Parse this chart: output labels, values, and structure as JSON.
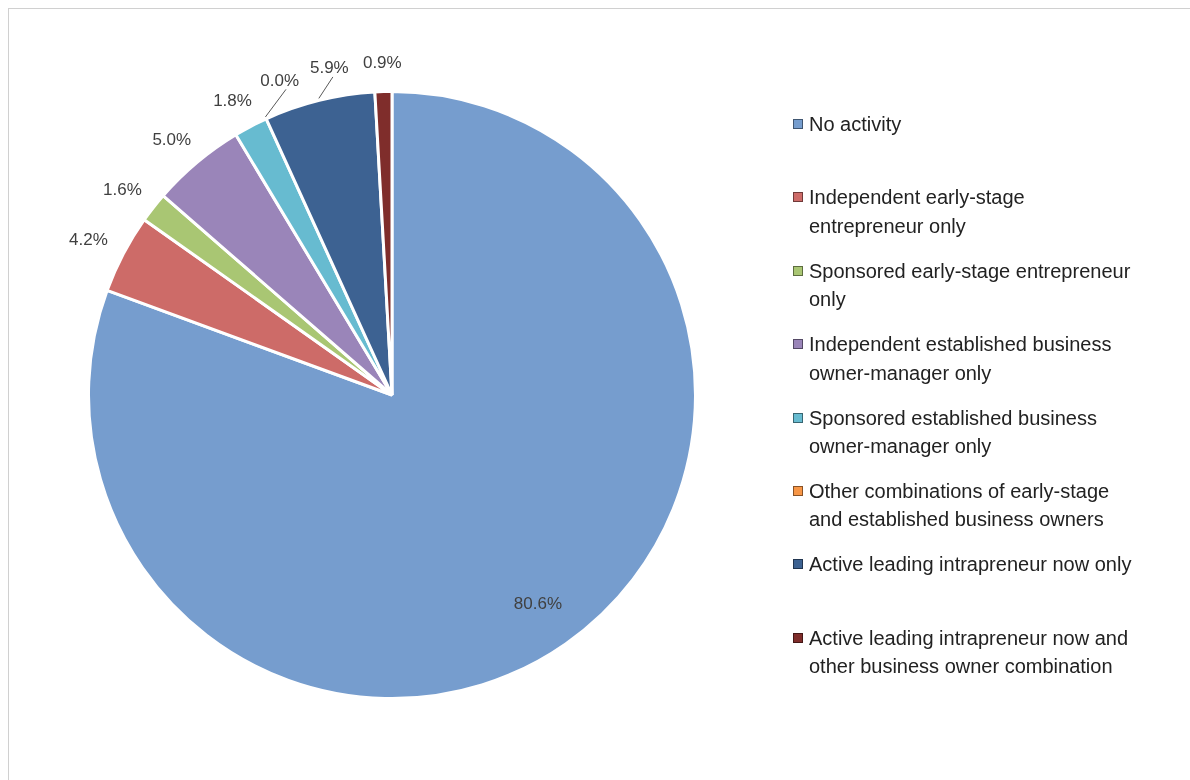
{
  "chart_data": {
    "type": "pie",
    "categories": [
      "No activity",
      "Independent early-stage entrepreneur only",
      "Sponsored early-stage entrepreneur only",
      "Independent established business owner-manager only",
      "Sponsored established business owner-manager only",
      "Other combinations of early-stage and established business owners",
      "Active leading intrapreneur now only",
      "Active leading intrapreneur now and other business owner combination"
    ],
    "values": [
      80.6,
      4.2,
      1.6,
      5.0,
      1.8,
      0.0,
      5.9,
      0.9
    ],
    "value_labels": [
      "80.6%",
      "4.2%",
      "1.6%",
      "5.0%",
      "1.8%",
      "0.0%",
      "5.9%",
      "0.9%"
    ],
    "colors": [
      "#769dce",
      "#cd6b68",
      "#a9c673",
      "#9a85b9",
      "#67bbd0",
      "#f79646",
      "#3d6292",
      "#7f2d2b"
    ],
    "legend": "right"
  }
}
